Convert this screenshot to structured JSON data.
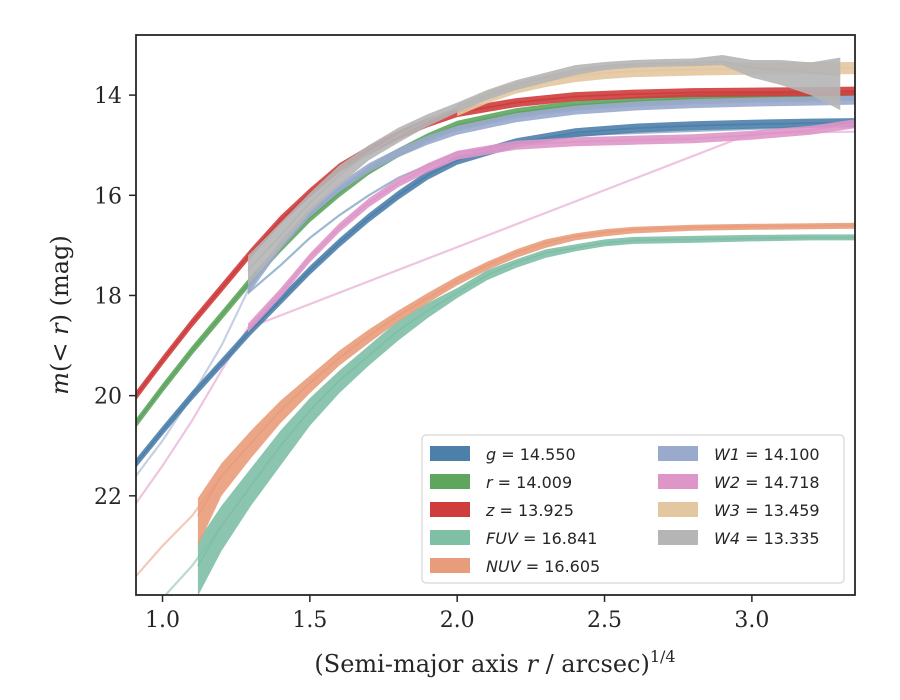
{
  "chart_data": {
    "type": "line",
    "xlabel": "(Semi-major axis r / arcsec)^{1/4}",
    "ylabel": "m(< r) (mag)",
    "xlim": [
      0.91,
      3.35
    ],
    "ylim": [
      23.98,
      12.8
    ],
    "y_inverted": true,
    "grid": false,
    "legend_placement": "lower-right",
    "x_ticks": [
      1.0,
      1.5,
      2.0,
      2.5,
      3.0
    ],
    "x_tick_labels": [
      "1.0",
      "1.5",
      "2.0",
      "2.5",
      "3.0"
    ],
    "y_ticks": [
      14,
      16,
      18,
      20,
      22
    ],
    "y_tick_labels": [
      "14",
      "16",
      "18",
      "20",
      "22"
    ],
    "series": [
      {
        "id": "g",
        "name": "g = 14.550",
        "label_var": "g",
        "label_val": "= 14.550",
        "color": "#4c7faa",
        "band_width": 0.09,
        "x": [
          0.91,
          1.0,
          1.1,
          1.2,
          1.3,
          1.4,
          1.5,
          1.6,
          1.7,
          1.8,
          1.9,
          2.0,
          2.2,
          2.4,
          2.6,
          2.8,
          3.0,
          3.2,
          3.35
        ],
        "y": [
          21.35,
          20.7,
          20.0,
          19.35,
          18.7,
          18.1,
          17.5,
          16.95,
          16.45,
          16.0,
          15.6,
          15.3,
          14.95,
          14.75,
          14.66,
          14.61,
          14.58,
          14.56,
          14.55
        ],
        "faint_x": [
          1.29,
          1.4,
          1.5,
          1.6,
          1.7,
          1.8,
          2.0,
          2.4,
          3.35
        ],
        "faint_y": [
          17.95,
          17.4,
          16.85,
          16.4,
          16.0,
          15.65,
          15.15,
          14.8,
          14.6
        ]
      },
      {
        "id": "r",
        "name": "r = 14.009",
        "label_var": "r",
        "label_val": "= 14.009",
        "color": "#5ea55e",
        "band_width": 0.09,
        "x": [
          0.91,
          1.0,
          1.1,
          1.2,
          1.3,
          1.4,
          1.5,
          1.6,
          1.7,
          1.8,
          1.9,
          2.0,
          2.2,
          2.4,
          2.6,
          2.8,
          3.0,
          3.2,
          3.35
        ],
        "y": [
          20.55,
          19.85,
          19.1,
          18.4,
          17.7,
          17.05,
          16.45,
          15.95,
          15.5,
          15.15,
          14.85,
          14.6,
          14.35,
          14.2,
          14.12,
          14.07,
          14.04,
          14.02,
          14.01
        ],
        "faint_x": [],
        "faint_y": []
      },
      {
        "id": "z",
        "name": "z = 13.925",
        "label_var": "z",
        "label_val": "= 13.925",
        "color": "#cf3c3c",
        "band_width": 0.09,
        "x": [
          0.91,
          1.0,
          1.1,
          1.2,
          1.3,
          1.4,
          1.5,
          1.6,
          1.7,
          1.8,
          1.9,
          2.0,
          2.2,
          2.4,
          2.6,
          2.8,
          3.0,
          3.2,
          3.35
        ],
        "y": [
          20.0,
          19.3,
          18.55,
          17.85,
          17.15,
          16.5,
          15.95,
          15.45,
          15.1,
          14.8,
          14.55,
          14.35,
          14.15,
          14.03,
          13.98,
          13.95,
          13.94,
          13.93,
          13.92
        ],
        "faint_x": [],
        "faint_y": []
      },
      {
        "id": "fuv",
        "name": "FUV = 16.841",
        "label_var": "FUV",
        "label_val": "= 16.841",
        "color": "#7ebfa6",
        "band_width": 0.3,
        "x": [
          1.12,
          1.2,
          1.3,
          1.4,
          1.5,
          1.6,
          1.7,
          1.8,
          1.9,
          2.0,
          2.1,
          2.2,
          2.3,
          2.4,
          2.5,
          2.6,
          2.8,
          3.0,
          3.2,
          3.35
        ],
        "y": [
          23.4,
          22.6,
          21.8,
          21.0,
          20.3,
          19.7,
          19.2,
          18.7,
          18.3,
          17.95,
          17.6,
          17.35,
          17.15,
          17.05,
          16.95,
          16.9,
          16.88,
          16.86,
          16.84,
          16.84
        ],
        "band_lo": [
          24.0,
          23.1,
          22.2,
          21.4,
          20.6,
          19.95,
          19.4,
          18.9,
          18.45,
          18.05,
          17.7,
          17.45,
          17.25,
          17.12,
          17.02,
          16.97,
          16.95,
          16.92,
          16.9,
          16.9
        ],
        "band_hi": [
          22.9,
          22.2,
          21.45,
          20.7,
          20.05,
          19.5,
          19.0,
          18.5,
          18.15,
          17.85,
          17.5,
          17.28,
          17.08,
          16.98,
          16.88,
          16.83,
          16.81,
          16.79,
          16.78,
          16.78
        ],
        "faint_x": [
          1.01,
          1.1,
          1.2
        ],
        "faint_y": [
          23.98,
          23.4,
          22.6
        ]
      },
      {
        "id": "nuv",
        "name": "NUV = 16.605",
        "label_var": "NUV",
        "label_val": "= 16.605",
        "color": "#e99c7b",
        "band_width": 0.2,
        "x": [
          1.12,
          1.2,
          1.3,
          1.4,
          1.5,
          1.6,
          1.7,
          1.8,
          1.9,
          2.0,
          2.1,
          2.2,
          2.3,
          2.4,
          2.5,
          2.6,
          2.8,
          3.0,
          3.2,
          3.35
        ],
        "y": [
          22.4,
          21.6,
          20.95,
          20.3,
          19.75,
          19.25,
          18.8,
          18.4,
          18.05,
          17.7,
          17.4,
          17.15,
          16.95,
          16.82,
          16.74,
          16.68,
          16.64,
          16.62,
          16.61,
          16.6
        ],
        "band_lo": [
          23.0,
          22.0,
          21.25,
          20.55,
          19.95,
          19.4,
          18.95,
          18.52,
          18.15,
          17.8,
          17.5,
          17.25,
          17.05,
          16.9,
          16.82,
          16.76,
          16.71,
          16.69,
          16.68,
          16.67
        ],
        "band_hi": [
          22.05,
          21.35,
          20.7,
          20.1,
          19.6,
          19.1,
          18.68,
          18.3,
          17.95,
          17.62,
          17.33,
          17.08,
          16.88,
          16.76,
          16.68,
          16.63,
          16.59,
          16.57,
          16.56,
          16.55
        ],
        "faint_x": [
          0.91,
          1.0,
          1.1,
          1.2
        ],
        "faint_y": [
          23.6,
          23.0,
          22.4,
          21.6
        ]
      },
      {
        "id": "w1",
        "name": "W1 = 14.100",
        "label_var": "W1",
        "label_val": "= 14.100",
        "color": "#9aaacd",
        "band_width": 0.09,
        "x": [
          1.29,
          1.4,
          1.5,
          1.6,
          1.7,
          1.8,
          1.9,
          2.0,
          2.2,
          2.4,
          2.6,
          2.8,
          3.0,
          3.2,
          3.35
        ],
        "y": [
          17.9,
          17.0,
          16.35,
          15.85,
          15.45,
          15.15,
          14.9,
          14.7,
          14.45,
          14.3,
          14.22,
          14.17,
          14.14,
          14.12,
          14.1
        ],
        "faint_x": [
          0.91,
          1.0,
          1.1,
          1.2,
          1.29
        ],
        "faint_y": [
          21.6,
          20.9,
          20.0,
          19.0,
          17.9
        ]
      },
      {
        "id": "w2",
        "name": "W2 = 14.718",
        "label_var": "W2",
        "label_val": "= 14.718",
        "color": "#de96c8",
        "band_width": 0.09,
        "x": [
          1.29,
          1.4,
          1.5,
          1.6,
          1.7,
          1.8,
          1.9,
          2.0,
          2.2,
          2.4,
          2.6,
          2.8,
          3.0,
          3.2,
          3.35
        ],
        "y": [
          18.65,
          17.95,
          17.25,
          16.65,
          16.15,
          15.75,
          15.45,
          15.2,
          15.0,
          14.93,
          14.9,
          14.87,
          14.8,
          14.7,
          14.57
        ],
        "faint_x": [
          0.91,
          1.0,
          1.1,
          1.2,
          1.29,
          3.0,
          3.35
        ],
        "faint_y": [
          22.15,
          21.4,
          20.5,
          19.5,
          18.65,
          14.76,
          14.73
        ]
      },
      {
        "id": "w3",
        "name": "W3 = 13.459",
        "label_var": "W3",
        "label_val": "= 13.459",
        "color": "#e3c7a0",
        "band_width": 0.12,
        "x": [
          2.0,
          2.1,
          2.2,
          2.3,
          2.4,
          2.5,
          2.6,
          2.8,
          3.0,
          3.2,
          3.35
        ],
        "y": [
          14.3,
          14.05,
          13.85,
          13.72,
          13.62,
          13.56,
          13.52,
          13.49,
          13.47,
          13.46,
          13.46
        ],
        "faint_x": [],
        "faint_y": []
      },
      {
        "id": "w4",
        "name": "W4 = 13.335",
        "label_var": "W4",
        "label_val": "= 13.335",
        "color": "#b5b5b5",
        "band_width": 0.15,
        "x": [
          1.29,
          1.4,
          1.5,
          1.6,
          1.7,
          1.8,
          1.9,
          2.0,
          2.1,
          2.2,
          2.3,
          2.4,
          2.5,
          2.6,
          2.7,
          2.8,
          2.9,
          3.0,
          3.1,
          3.2,
          3.3
        ],
        "y": [
          17.5,
          16.8,
          16.15,
          15.6,
          15.15,
          14.8,
          14.5,
          14.25,
          14.0,
          13.8,
          13.65,
          13.5,
          13.42,
          13.38,
          13.36,
          13.35,
          13.33,
          13.45,
          13.5,
          13.55,
          13.6
        ],
        "band_lo": [
          17.8,
          17.05,
          16.35,
          15.8,
          15.3,
          14.95,
          14.62,
          14.35,
          14.1,
          13.9,
          13.75,
          13.6,
          13.5,
          13.45,
          13.43,
          13.42,
          13.4,
          13.65,
          13.8,
          14.0,
          14.3
        ],
        "band_hi": [
          17.2,
          16.55,
          15.95,
          15.4,
          15.0,
          14.65,
          14.38,
          14.15,
          13.9,
          13.7,
          13.55,
          13.4,
          13.34,
          13.3,
          13.28,
          13.27,
          13.2,
          13.3,
          13.3,
          13.35,
          13.25
        ],
        "faint_x": [],
        "faint_y": []
      }
    ]
  }
}
